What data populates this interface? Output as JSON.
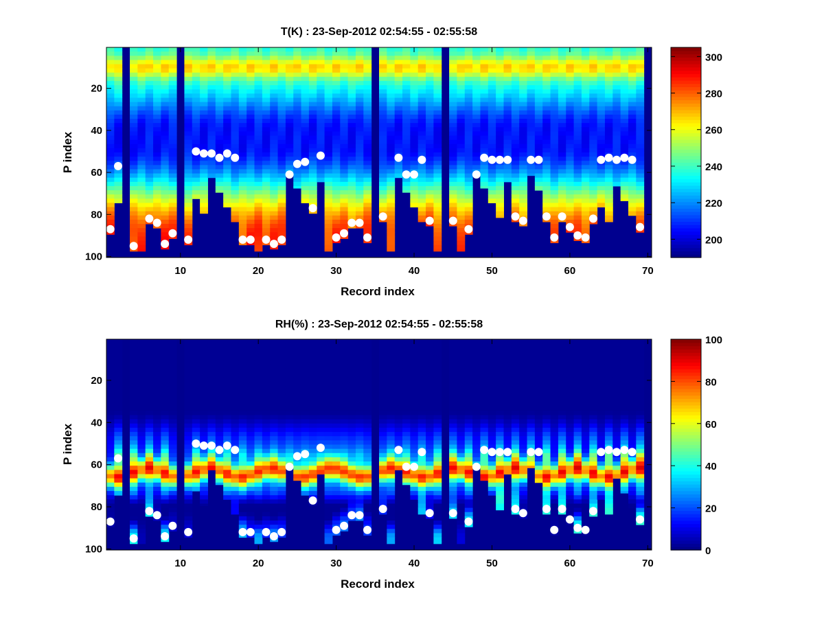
{
  "chart_data": [
    {
      "type": "heatmap",
      "title": "T(K) : 23-Sep-2012 02:54:55 - 02:55:58",
      "xlabel": "Record index",
      "ylabel": "P index",
      "xlim": [
        0.5,
        70.5
      ],
      "ylim": [
        0.5,
        100.5
      ],
      "y_reversed": true,
      "x_ticks": [
        10,
        20,
        30,
        40,
        50,
        60,
        70
      ],
      "y_ticks": [
        20,
        40,
        60,
        80,
        100
      ],
      "colorbar": {
        "range": [
          190,
          305
        ],
        "ticks": [
          200,
          220,
          240,
          260,
          280,
          300
        ],
        "colormap": "jet"
      },
      "marker_x": [
        1,
        2,
        4,
        6,
        7,
        8,
        9,
        11,
        12,
        13,
        14,
        15,
        16,
        17,
        18,
        19,
        21,
        22,
        23,
        24,
        25,
        26,
        27,
        28,
        30,
        31,
        32,
        33,
        34,
        36,
        38,
        39,
        40,
        41,
        42,
        45,
        47,
        48,
        49,
        50,
        51,
        52,
        53,
        54,
        55,
        56,
        57,
        58,
        59,
        60,
        61,
        62,
        63,
        64,
        65,
        66,
        67,
        68,
        69
      ],
      "marker_y": [
        87,
        57,
        95,
        82,
        84,
        94,
        89,
        92,
        50,
        51,
        51,
        53,
        51,
        53,
        92,
        92,
        92,
        94,
        92,
        61,
        56,
        55,
        77,
        52,
        91,
        89,
        84,
        84,
        91,
        81,
        53,
        61,
        61,
        54,
        83,
        83,
        87,
        61,
        53,
        54,
        54,
        54,
        81,
        83,
        54,
        54,
        81,
        91,
        81,
        86,
        90,
        91,
        82,
        54,
        53,
        54,
        53,
        54,
        86
      ]
    },
    {
      "type": "heatmap",
      "title": "RH(%) : 23-Sep-2012 02:54:55 - 02:55:58",
      "xlabel": "Record index",
      "ylabel": "P index",
      "xlim": [
        0.5,
        70.5
      ],
      "ylim": [
        0.5,
        100.5
      ],
      "y_reversed": true,
      "x_ticks": [
        10,
        20,
        30,
        40,
        50,
        60,
        70
      ],
      "y_ticks": [
        20,
        40,
        60,
        80,
        100
      ],
      "colorbar": {
        "range": [
          0,
          100
        ],
        "ticks": [
          0,
          20,
          40,
          60,
          80,
          100
        ],
        "colormap": "jet"
      },
      "marker_x": [
        1,
        2,
        4,
        6,
        7,
        8,
        9,
        11,
        12,
        13,
        14,
        15,
        16,
        17,
        18,
        19,
        21,
        22,
        23,
        24,
        25,
        26,
        27,
        28,
        30,
        31,
        32,
        33,
        34,
        36,
        38,
        39,
        40,
        41,
        42,
        45,
        47,
        48,
        49,
        50,
        51,
        52,
        53,
        54,
        55,
        56,
        57,
        58,
        59,
        60,
        61,
        62,
        63,
        64,
        65,
        66,
        67,
        68,
        69
      ],
      "marker_y": [
        87,
        57,
        95,
        82,
        84,
        94,
        89,
        92,
        50,
        51,
        51,
        53,
        51,
        53,
        92,
        92,
        92,
        94,
        92,
        61,
        56,
        55,
        77,
        52,
        91,
        89,
        84,
        84,
        91,
        81,
        53,
        61,
        61,
        54,
        83,
        83,
        87,
        61,
        53,
        54,
        54,
        54,
        81,
        83,
        54,
        54,
        81,
        91,
        81,
        86,
        90,
        91,
        82,
        54,
        53,
        54,
        53,
        54,
        86
      ]
    }
  ]
}
